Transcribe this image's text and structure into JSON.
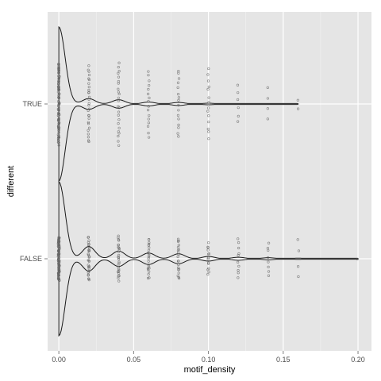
{
  "chart_data": {
    "type": "violin",
    "orientation": "horizontal",
    "xlabel": "motif_density",
    "ylabel": "different",
    "xlim": [
      -0.0075,
      0.209
    ],
    "x_ticks": [
      "0.00",
      "0.05",
      "0.10",
      "0.15",
      "0.20"
    ],
    "x_tick_values": [
      0.0,
      0.05,
      0.1,
      0.15,
      0.2
    ],
    "categories": [
      "TRUE",
      "FALSE"
    ],
    "grid": true,
    "legend": "none",
    "colors": {
      "panel": "#e5e5e5",
      "grid_major": "#ffffff",
      "grid_minor": "#f2f2f2",
      "violin_line": "#1a1a1a",
      "points": "#666666"
    },
    "series": [
      {
        "name": "TRUE",
        "x_levels": [
          0.0,
          0.02,
          0.04,
          0.06,
          0.08,
          0.1,
          0.12,
          0.14,
          0.16
        ],
        "violin_half_width": [
          1.0,
          0.07,
          0.055,
          0.025,
          0.02,
          0.01,
          0.006,
          0.004,
          0.002
        ],
        "point_spread": [
          1.0,
          0.95,
          1.0,
          0.8,
          0.85,
          0.85,
          0.45,
          0.38,
          0.12
        ],
        "point_counts": [
          80,
          28,
          24,
          16,
          16,
          14,
          6,
          4,
          2
        ]
      },
      {
        "name": "FALSE",
        "x_levels": [
          0.0,
          0.02,
          0.04,
          0.06,
          0.08,
          0.1,
          0.12,
          0.14,
          0.16,
          0.2
        ],
        "violin_half_width": [
          1.0,
          0.16,
          0.1,
          0.075,
          0.065,
          0.03,
          0.02,
          0.014,
          0.008,
          0.002
        ],
        "point_spread": [
          0.54,
          0.54,
          0.54,
          0.5,
          0.5,
          0.38,
          0.48,
          0.4,
          0.48,
          0.3
        ],
        "point_counts": [
          90,
          30,
          28,
          22,
          20,
          14,
          10,
          8,
          4,
          1
        ]
      }
    ]
  }
}
